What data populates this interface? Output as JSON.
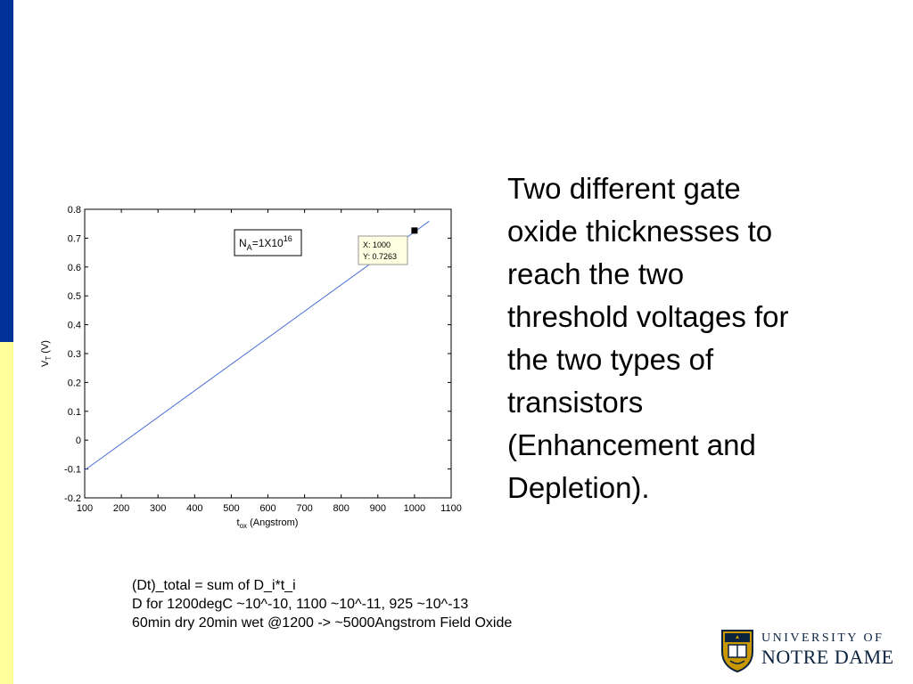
{
  "theme": {
    "left_bar_top": "#00329a",
    "left_bar_bottom": "#ffff99",
    "line_color": "#4a6fd6"
  },
  "side_text": [
    "Two different gate",
    "oxide thicknesses to",
    "reach the two",
    "threshold voltages for",
    "the two types of",
    "transistors",
    "(Enhancement and",
    "Depletion)."
  ],
  "notes": [
    "(Dt)_total = sum of D_i*t_i",
    "D for 1200degC ~10^-10, 1100 ~10^-11, 925 ~10^-13",
    "60min dry 20min wet @1200 -> ~5000Angstrom Field Oxide"
  ],
  "logo": {
    "line1": "UNIVERSITY OF",
    "line2": "NOTRE DAME"
  },
  "chart_data": {
    "type": "line",
    "title": "",
    "xlabel_main": "t",
    "xlabel_sub": "ox",
    "xlabel_rest": " (Angstrom)",
    "ylabel_main": "V",
    "ylabel_sub": "T",
    "ylabel_rest": " (V)",
    "xlim": [
      100,
      1100
    ],
    "ylim": [
      -0.2,
      0.8
    ],
    "xticks": [
      100,
      200,
      300,
      400,
      500,
      600,
      700,
      800,
      900,
      1000,
      1100
    ],
    "yticks": [
      -0.2,
      -0.1,
      0,
      0.1,
      0.2,
      0.3,
      0.4,
      0.5,
      0.6,
      0.7,
      0.8
    ],
    "ytick_labels": [
      "-0.2",
      "-0.1",
      "0",
      "0.1",
      "0.2",
      "0.3",
      "0.4",
      "0.5",
      "0.6",
      "0.7",
      "0.8"
    ],
    "series": [
      {
        "x": [
          100,
          1040
        ],
        "y": [
          -0.104,
          0.7585
        ]
      }
    ],
    "legend": {
      "prefix": "N",
      "sub": "A",
      "mid": "=1X10",
      "sup": "16",
      "location": "top-left"
    },
    "datatip": {
      "x": 1000,
      "y": 0.7263,
      "x_text": "X: 1000",
      "y_text": "Y: 0.7263"
    },
    "grid": false
  }
}
